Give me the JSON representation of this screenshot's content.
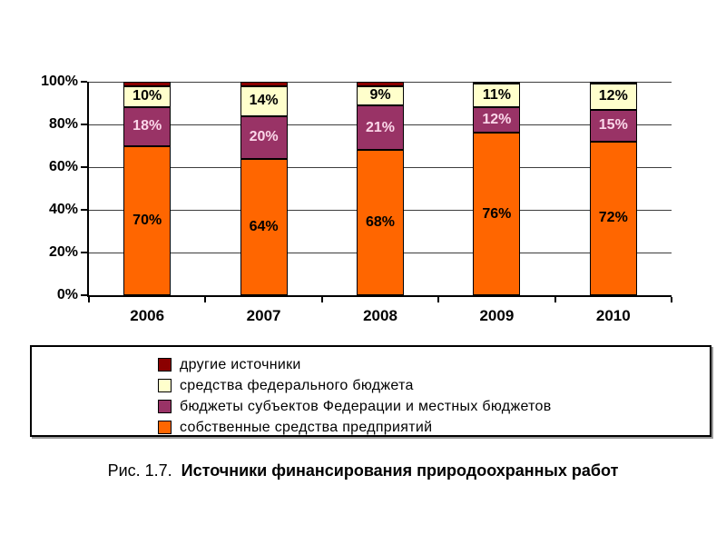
{
  "caption": {
    "prefix": "Рис. 1.7.",
    "title": "Источники финансирования природоохранных работ"
  },
  "chart_data": {
    "type": "bar",
    "variant": "stacked-100-percent",
    "title": "",
    "xlabel": "",
    "ylabel": "",
    "categories": [
      "2006",
      "2007",
      "2008",
      "2009",
      "2010"
    ],
    "series": [
      {
        "name": "собственные средства предприятий",
        "color": "#FF6600",
        "label_color": "#000000",
        "values": [
          70,
          64,
          68,
          76,
          72
        ]
      },
      {
        "name": "бюджеты субъектов Федерации и местных бюджетов",
        "color": "#993366",
        "label_color": "#FBD7E9",
        "values": [
          18,
          20,
          21,
          12,
          15
        ]
      },
      {
        "name": "средства федерального бюджета",
        "color": "#FFFFCC",
        "label_color": "#000000",
        "values": [
          10,
          14,
          9,
          11,
          12
        ]
      },
      {
        "name": "другие источники",
        "color": "#8B0000",
        "values": [
          2,
          2,
          2,
          1,
          1
        ],
        "show_labels": false
      }
    ],
    "y_ticks": [
      "0%",
      "20%",
      "40%",
      "60%",
      "80%",
      "100%"
    ],
    "ylim": [
      0,
      100
    ],
    "grid": true,
    "legend_position": "bottom",
    "legend_order": "reverse-of-stacking"
  }
}
